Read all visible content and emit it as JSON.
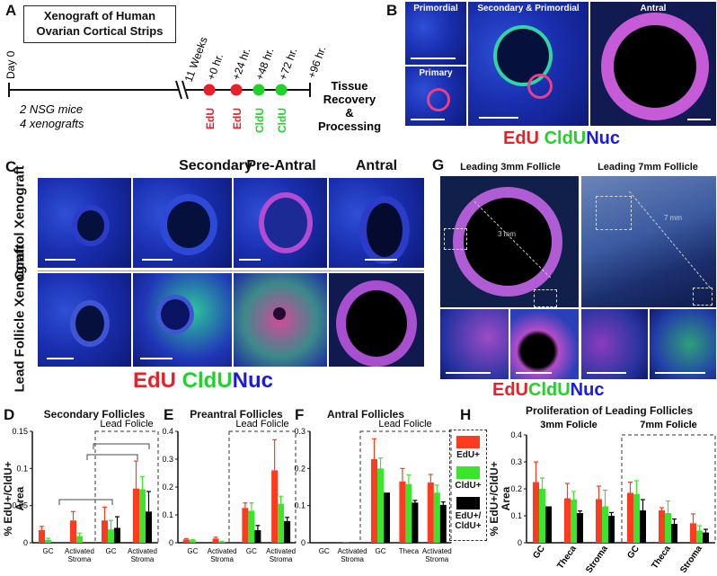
{
  "panels": {
    "a": {
      "label": "A",
      "title_line1": "Xenograft of Human",
      "title_line2": "Ovarian Cortical Strips",
      "day0": "Day 0",
      "weeks": "11 Weeks",
      "times": [
        "+0 hr.",
        "+24 hr.",
        "+48 hr.",
        "+72 hr."
      ],
      "time_end": "+96 hr.",
      "injections": [
        "EdU",
        "EdU",
        "CldU",
        "CldU"
      ],
      "mice": "2 NSG mice",
      "xenografts": "4 xenografts",
      "end_label": [
        "Tissue",
        "Recovery",
        "&",
        "Processing"
      ],
      "colors": {
        "edu": "#e8202a",
        "cldu": "#22d12a"
      }
    },
    "b": {
      "label": "B",
      "tags": [
        "Primordial",
        "Secondary & Primordial",
        "Antral",
        "Primary"
      ],
      "stain": [
        "EdU",
        "CldU",
        "Nuc"
      ]
    },
    "c": {
      "label": "C",
      "headers": [
        "Secondary",
        "Pre-Antral",
        "Antral"
      ],
      "rows": [
        "Control Xenograft",
        "Lead Follicle Xenograft"
      ],
      "stain": [
        "EdU",
        "CldU",
        "Nuc"
      ]
    },
    "g": {
      "label": "G",
      "headers": [
        "Leading 3mm Follicle",
        "Leading 7mm Follicle"
      ],
      "measure_3mm": "3 mm",
      "measure_7mm": "7 mm",
      "stain": [
        "EdU",
        "CldU",
        "Nuc"
      ]
    },
    "d": {
      "label": "D",
      "title": "Secondary Follicles",
      "lead": "Lead Folicle"
    },
    "e": {
      "label": "E",
      "title": "Preantral Follicles",
      "lead": "Lead Folicle"
    },
    "f": {
      "label": "F",
      "title": "Antral Follicles",
      "lead": "Lead Folicle"
    },
    "h": {
      "label": "H",
      "title": "Proliferation of Leading Follicles",
      "sub3": "3mm Folicle",
      "sub7": "7mm Folicle"
    },
    "ylabel_line1": "% EdU+/CldU+",
    "ylabel_line2": "Area",
    "legend": {
      "edu": "EdU+",
      "cldu": "CldU+",
      "both_line1": "EdU+/",
      "both_line2": "CldU+"
    }
  },
  "chart_data": [
    {
      "type": "bar",
      "id": "D",
      "title": "Secondary Follicles",
      "categories": [
        "GC",
        "Activated Stroma",
        "GC",
        "Activated Stroma"
      ],
      "ylim": [
        0,
        0.15
      ],
      "yticks": [
        0,
        0.05,
        0.1,
        0.15
      ],
      "series": [
        {
          "name": "EdU+",
          "values": [
            0.017,
            0.03,
            0.03,
            0.073
          ],
          "errors": [
            0.005,
            0.012,
            0.018,
            0.037
          ]
        },
        {
          "name": "CldU+",
          "values": [
            0.004,
            0.009,
            0.018,
            0.072
          ],
          "errors": [
            0.002,
            0.004,
            0.012,
            0.017
          ]
        },
        {
          "name": "EdU+/CldU+",
          "values": [
            0,
            0,
            0.02,
            0.042
          ],
          "errors": [
            0,
            0,
            0.015,
            0.027
          ]
        }
      ]
    },
    {
      "type": "bar",
      "id": "E",
      "title": "Preantral Follicles",
      "categories": [
        "GC",
        "Activated Stroma",
        "GC",
        "Activated Stroma"
      ],
      "ylim": [
        0,
        0.4
      ],
      "yticks": [
        0,
        0.1,
        0.2,
        0.3,
        0.4
      ],
      "series": [
        {
          "name": "EdU+",
          "values": [
            0.012,
            0.015,
            0.125,
            0.26
          ],
          "errors": [
            0.003,
            0.005,
            0.018,
            0.11
          ]
        },
        {
          "name": "CldU+",
          "values": [
            0.009,
            0.003,
            0.115,
            0.14
          ],
          "errors": [
            0.002,
            0.002,
            0.028,
            0.027
          ]
        },
        {
          "name": "EdU+/CldU+",
          "values": [
            0,
            0,
            0.045,
            0.078
          ],
          "errors": [
            0,
            0,
            0.017,
            0.013
          ]
        }
      ]
    },
    {
      "type": "bar",
      "id": "F",
      "title": "Antral Follicles",
      "categories": [
        "GC",
        "Activated Stroma",
        "GC",
        "Theca",
        "Activated Stroma"
      ],
      "ylim": [
        0,
        0.3
      ],
      "yticks": [
        0,
        0.1,
        0.2,
        0.3
      ],
      "series": [
        {
          "name": "EdU+",
          "values": [
            0,
            0.002,
            0.225,
            0.165,
            0.162
          ],
          "errors": [
            0,
            0,
            0.055,
            0.035,
            0.022
          ]
        },
        {
          "name": "CldU+",
          "values": [
            0,
            0,
            0.2,
            0.158,
            0.135
          ],
          "errors": [
            0,
            0,
            0.028,
            0.025,
            0.02
          ]
        },
        {
          "name": "EdU+/CldU+",
          "values": [
            0,
            0,
            0.135,
            0.108,
            0.102
          ],
          "errors": [
            0,
            0,
            0,
            0.006,
            0.008
          ]
        }
      ]
    },
    {
      "type": "bar",
      "id": "H",
      "title": "Proliferation of Leading Follicles",
      "categories": [
        "GC",
        "Theca",
        "Stroma",
        "GC",
        "Theca",
        "Stroma"
      ],
      "ylim": [
        0,
        0.4
      ],
      "yticks": [
        0,
        0.1,
        0.2,
        0.3,
        0.4
      ],
      "series": [
        {
          "name": "EdU+",
          "values": [
            0.225,
            0.165,
            0.162,
            0.185,
            0.12,
            0.072
          ],
          "errors": [
            0.075,
            0.055,
            0.048,
            0.04,
            0.01,
            0.035
          ]
        },
        {
          "name": "CldU+",
          "values": [
            0.2,
            0.16,
            0.135,
            0.18,
            0.11,
            0.045
          ],
          "errors": [
            0.04,
            0.03,
            0.06,
            0.05,
            0.045,
            0.018
          ]
        },
        {
          "name": "EdU+/CldU+",
          "values": [
            0.135,
            0.11,
            0.1,
            0.12,
            0.07,
            0.038
          ],
          "errors": [
            0,
            0.008,
            0.012,
            0.04,
            0.018,
            0.012
          ]
        }
      ]
    }
  ]
}
